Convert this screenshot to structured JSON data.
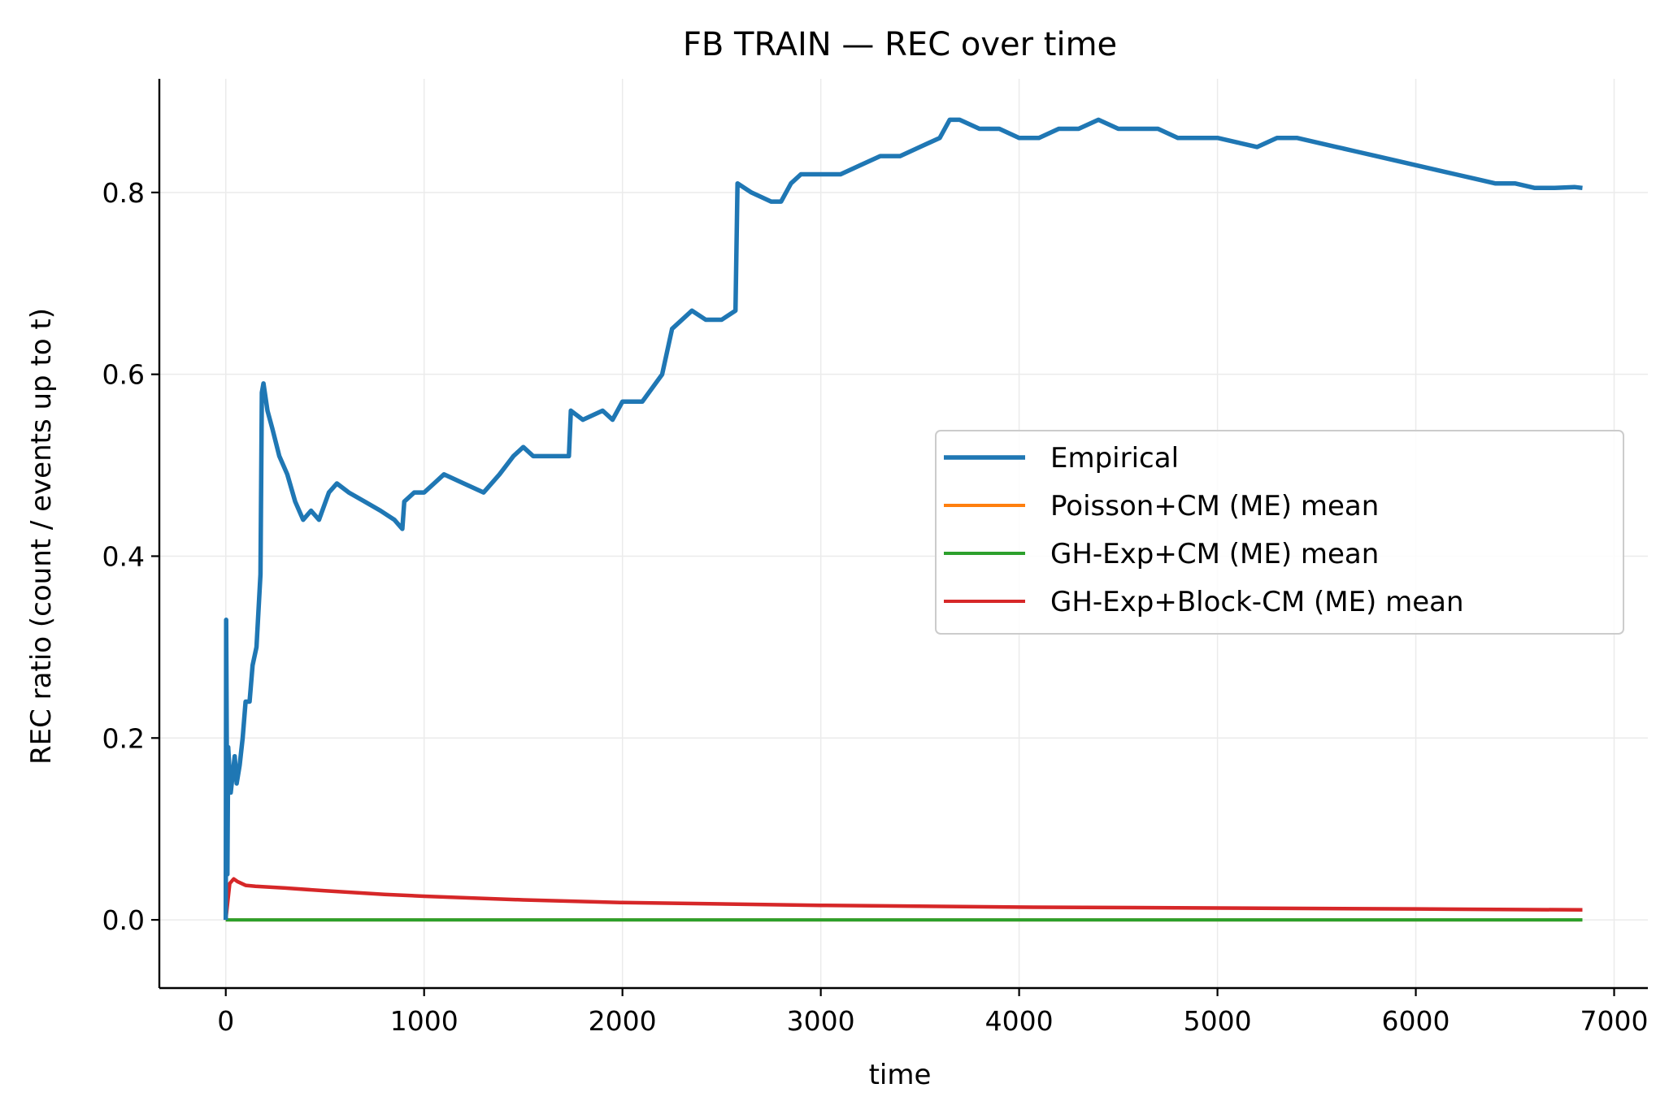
{
  "chart_data": {
    "type": "line",
    "title": "FB TRAIN — REC over time",
    "xlabel": "time",
    "ylabel": "REC ratio (count / events up to t)",
    "xlim": [
      -335,
      7170
    ],
    "ylim": [
      -0.075,
      0.925
    ],
    "xticks": [
      0,
      1000,
      2000,
      3000,
      4000,
      5000,
      6000,
      7000
    ],
    "xtick_labels": [
      "0",
      "1000",
      "2000",
      "3000",
      "4000",
      "5000",
      "6000",
      "7000"
    ],
    "yticks": [
      0.0,
      0.2,
      0.4,
      0.6,
      0.8
    ],
    "ytick_labels": [
      "0.0",
      "0.2",
      "0.4",
      "0.6",
      "0.8"
    ],
    "grid": true,
    "legend_position": "center-right",
    "series": [
      {
        "name": "Empirical",
        "color": "#1f77b4",
        "points": [
          [
            0,
            0.0
          ],
          [
            2,
            0.33
          ],
          [
            8,
            0.05
          ],
          [
            12,
            0.19
          ],
          [
            25,
            0.14
          ],
          [
            45,
            0.18
          ],
          [
            55,
            0.15
          ],
          [
            70,
            0.17
          ],
          [
            85,
            0.2
          ],
          [
            100,
            0.24
          ],
          [
            120,
            0.24
          ],
          [
            135,
            0.28
          ],
          [
            155,
            0.3
          ],
          [
            175,
            0.38
          ],
          [
            182,
            0.58
          ],
          [
            190,
            0.59
          ],
          [
            210,
            0.56
          ],
          [
            235,
            0.54
          ],
          [
            270,
            0.51
          ],
          [
            310,
            0.49
          ],
          [
            350,
            0.46
          ],
          [
            390,
            0.44
          ],
          [
            430,
            0.45
          ],
          [
            470,
            0.44
          ],
          [
            520,
            0.47
          ],
          [
            560,
            0.48
          ],
          [
            620,
            0.47
          ],
          [
            700,
            0.46
          ],
          [
            780,
            0.45
          ],
          [
            850,
            0.44
          ],
          [
            890,
            0.43
          ],
          [
            900,
            0.46
          ],
          [
            950,
            0.47
          ],
          [
            1000,
            0.47
          ],
          [
            1050,
            0.48
          ],
          [
            1100,
            0.49
          ],
          [
            1200,
            0.48
          ],
          [
            1300,
            0.47
          ],
          [
            1380,
            0.49
          ],
          [
            1450,
            0.51
          ],
          [
            1500,
            0.52
          ],
          [
            1550,
            0.51
          ],
          [
            1650,
            0.51
          ],
          [
            1730,
            0.51
          ],
          [
            1740,
            0.56
          ],
          [
            1800,
            0.55
          ],
          [
            1900,
            0.56
          ],
          [
            1950,
            0.55
          ],
          [
            2000,
            0.57
          ],
          [
            2100,
            0.57
          ],
          [
            2200,
            0.6
          ],
          [
            2250,
            0.65
          ],
          [
            2350,
            0.67
          ],
          [
            2420,
            0.66
          ],
          [
            2500,
            0.66
          ],
          [
            2570,
            0.67
          ],
          [
            2580,
            0.81
          ],
          [
            2650,
            0.8
          ],
          [
            2750,
            0.79
          ],
          [
            2800,
            0.79
          ],
          [
            2850,
            0.81
          ],
          [
            2900,
            0.82
          ],
          [
            3000,
            0.82
          ],
          [
            3100,
            0.82
          ],
          [
            3200,
            0.83
          ],
          [
            3300,
            0.84
          ],
          [
            3400,
            0.84
          ],
          [
            3500,
            0.85
          ],
          [
            3600,
            0.86
          ],
          [
            3650,
            0.88
          ],
          [
            3700,
            0.88
          ],
          [
            3800,
            0.87
          ],
          [
            3900,
            0.87
          ],
          [
            4000,
            0.86
          ],
          [
            4100,
            0.86
          ],
          [
            4200,
            0.87
          ],
          [
            4300,
            0.87
          ],
          [
            4400,
            0.88
          ],
          [
            4500,
            0.87
          ],
          [
            4600,
            0.87
          ],
          [
            4700,
            0.87
          ],
          [
            4800,
            0.86
          ],
          [
            4900,
            0.86
          ],
          [
            5000,
            0.86
          ],
          [
            5100,
            0.855
          ],
          [
            5200,
            0.85
          ],
          [
            5300,
            0.86
          ],
          [
            5400,
            0.86
          ],
          [
            5500,
            0.855
          ],
          [
            5600,
            0.85
          ],
          [
            5700,
            0.845
          ],
          [
            5800,
            0.84
          ],
          [
            5900,
            0.835
          ],
          [
            6000,
            0.83
          ],
          [
            6100,
            0.825
          ],
          [
            6200,
            0.82
          ],
          [
            6300,
            0.815
          ],
          [
            6400,
            0.81
          ],
          [
            6500,
            0.81
          ],
          [
            6600,
            0.805
          ],
          [
            6700,
            0.805
          ],
          [
            6800,
            0.806
          ],
          [
            6840,
            0.805
          ]
        ]
      },
      {
        "name": "Poisson+CM (ME) mean",
        "color": "#ff7f0e",
        "points": [
          [
            0,
            0.0
          ],
          [
            6840,
            0.0
          ]
        ]
      },
      {
        "name": "GH-Exp+CM (ME) mean",
        "color": "#2ca02c",
        "points": [
          [
            0,
            0.0
          ],
          [
            6840,
            0.0
          ]
        ]
      },
      {
        "name": "GH-Exp+Block-CM (ME) mean",
        "color": "#d62728",
        "points": [
          [
            0,
            0.0
          ],
          [
            20,
            0.04
          ],
          [
            40,
            0.045
          ],
          [
            60,
            0.042
          ],
          [
            100,
            0.038
          ],
          [
            150,
            0.037
          ],
          [
            300,
            0.035
          ],
          [
            500,
            0.032
          ],
          [
            800,
            0.028
          ],
          [
            1000,
            0.026
          ],
          [
            1500,
            0.022
          ],
          [
            2000,
            0.019
          ],
          [
            3000,
            0.016
          ],
          [
            4000,
            0.014
          ],
          [
            5000,
            0.013
          ],
          [
            6000,
            0.012
          ],
          [
            6840,
            0.011
          ]
        ]
      }
    ]
  }
}
